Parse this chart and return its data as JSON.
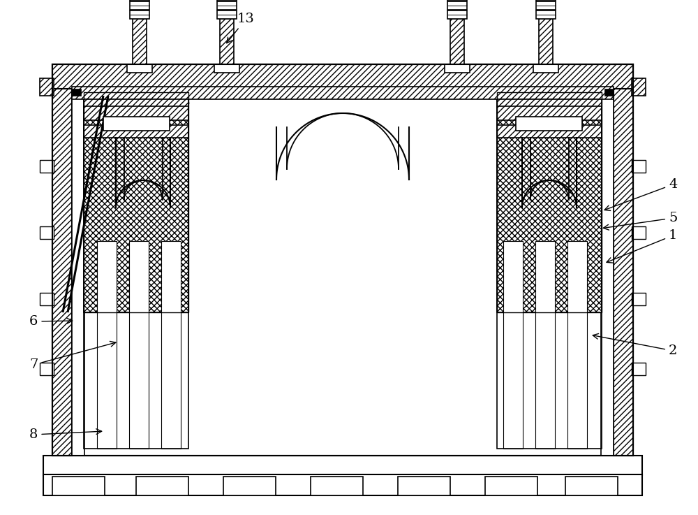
{
  "bg": "#ffffff",
  "lc": "#000000",
  "fig_w": 10.0,
  "fig_h": 7.37,
  "dpi": 100,
  "labels": [
    [
      "1",
      958,
      395,
      865,
      360
    ],
    [
      "2",
      958,
      230,
      845,
      258
    ],
    [
      "4",
      958,
      468,
      862,
      435
    ],
    [
      "5",
      958,
      420,
      860,
      410
    ],
    [
      "6",
      42,
      272,
      108,
      278
    ],
    [
      "7",
      42,
      210,
      170,
      248
    ],
    [
      "8",
      42,
      110,
      150,
      120
    ],
    [
      "13",
      340,
      705,
      322,
      672
    ]
  ]
}
